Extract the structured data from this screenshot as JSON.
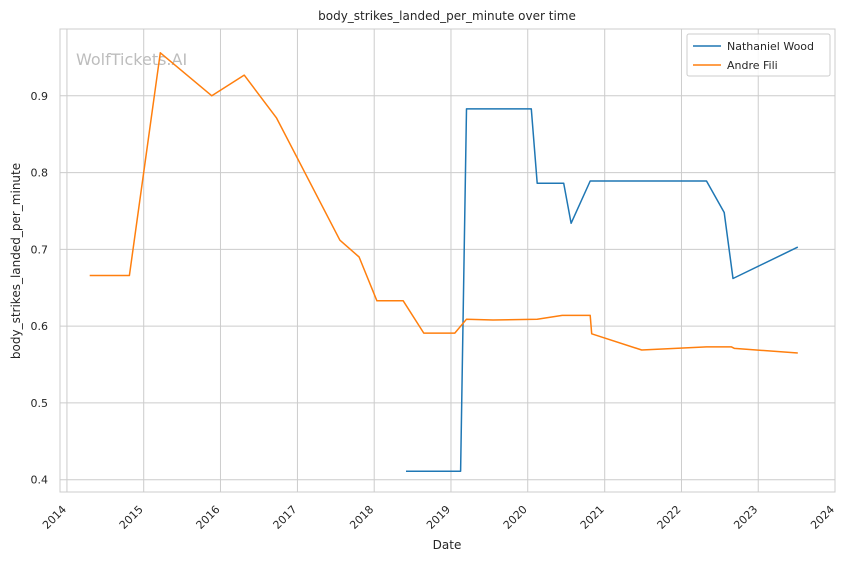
{
  "chart_data": {
    "type": "line",
    "title": "body_strikes_landed_per_minute over time",
    "xlabel": "Date",
    "ylabel": "body_strikes_landed_per_minute",
    "watermark": "WolfTickets.AI",
    "x_ticks": [
      "2014",
      "2015",
      "2016",
      "2017",
      "2018",
      "2019",
      "2020",
      "2021",
      "2022",
      "2023",
      "2024"
    ],
    "y_ticks": [
      0.4,
      0.5,
      0.6,
      0.7,
      0.8,
      0.9
    ],
    "xlim": [
      "2013-11-29",
      "2024-01-01"
    ],
    "ylim": [
      0.384,
      0.987
    ],
    "grid": true,
    "legend_position": "top-right",
    "colors": {
      "Nathaniel Wood": "#1f77b4",
      "Andre Fili": "#ff7f0e"
    },
    "series": [
      {
        "name": "Nathaniel Wood",
        "points": [
          [
            "2018-06-01",
            0.411
          ],
          [
            "2019-02-16",
            0.411
          ],
          [
            "2019-03-16",
            0.883
          ],
          [
            "2020-01-18",
            0.883
          ],
          [
            "2020-02-15",
            0.786
          ],
          [
            "2020-06-20",
            0.786
          ],
          [
            "2020-07-25",
            0.734
          ],
          [
            "2020-10-24",
            0.789
          ],
          [
            "2022-04-30",
            0.789
          ],
          [
            "2022-07-23",
            0.748
          ],
          [
            "2022-09-03",
            0.662
          ],
          [
            "2023-07-08",
            0.703
          ]
        ]
      },
      {
        "name": "Andre Fili",
        "points": [
          [
            "2014-04-19",
            0.666
          ],
          [
            "2014-10-25",
            0.666
          ],
          [
            "2015-03-21",
            0.956
          ],
          [
            "2015-11-21",
            0.9
          ],
          [
            "2016-04-23",
            0.927
          ],
          [
            "2016-09-24",
            0.871
          ],
          [
            "2017-07-22",
            0.712
          ],
          [
            "2017-10-21",
            0.69
          ],
          [
            "2018-01-14",
            0.633
          ],
          [
            "2018-05-19",
            0.633
          ],
          [
            "2018-08-25",
            0.591
          ],
          [
            "2019-01-19",
            0.591
          ],
          [
            "2019-03-16",
            0.609
          ],
          [
            "2019-07-20",
            0.608
          ],
          [
            "2020-02-15",
            0.609
          ],
          [
            "2020-06-13",
            0.614
          ],
          [
            "2020-10-24",
            0.614
          ],
          [
            "2020-10-31",
            0.59
          ],
          [
            "2021-06-26",
            0.569
          ],
          [
            "2022-04-30",
            0.573
          ],
          [
            "2022-08-27",
            0.573
          ],
          [
            "2022-09-10",
            0.571
          ],
          [
            "2023-07-08",
            0.565
          ]
        ]
      }
    ]
  }
}
